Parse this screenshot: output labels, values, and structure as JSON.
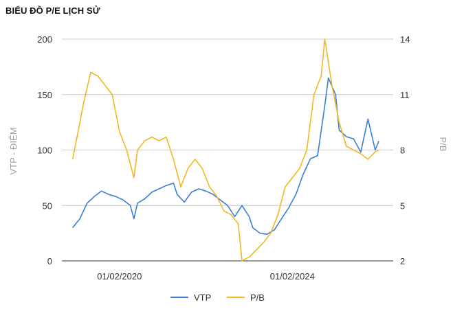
{
  "title": "BIỂU ĐỒ P/E LỊCH SỬ",
  "chart_data": {
    "type": "line",
    "title": "BIỂU ĐỒ P/E LỊCH SỬ",
    "ylabel_left": "VTP - ĐIỂM",
    "ylabel_right": "P/B",
    "ylim_left": [
      0,
      200
    ],
    "ylim_right": [
      2,
      14
    ],
    "yticks_left": [
      "0",
      "50",
      "100",
      "150",
      "200"
    ],
    "yticks_right": [
      "2",
      "5",
      "8",
      "11",
      "14"
    ],
    "xlim": [
      "2018-10",
      "2026-06"
    ],
    "xticks": [
      {
        "date": "2020-02",
        "label": "01/02/2020"
      },
      {
        "date": "2024-02",
        "label": "01/02/2024"
      }
    ],
    "grid": true,
    "legend_position": "bottom",
    "series": [
      {
        "name": "VTP",
        "axis": "left",
        "color": "#3b7dd8",
        "points": [
          [
            "2019-01",
            30
          ],
          [
            "2019-03",
            38
          ],
          [
            "2019-05",
            52
          ],
          [
            "2019-07",
            58
          ],
          [
            "2019-09",
            63
          ],
          [
            "2019-11",
            60
          ],
          [
            "2020-01",
            58
          ],
          [
            "2020-03",
            55
          ],
          [
            "2020-05",
            50
          ],
          [
            "2020-06",
            38
          ],
          [
            "2020-07",
            52
          ],
          [
            "2020-09",
            56
          ],
          [
            "2020-11",
            62
          ],
          [
            "2021-01",
            65
          ],
          [
            "2021-03",
            68
          ],
          [
            "2021-05",
            70
          ],
          [
            "2021-06",
            60
          ],
          [
            "2021-08",
            53
          ],
          [
            "2021-10",
            62
          ],
          [
            "2021-12",
            65
          ],
          [
            "2022-02",
            63
          ],
          [
            "2022-04",
            60
          ],
          [
            "2022-06",
            55
          ],
          [
            "2022-08",
            50
          ],
          [
            "2022-10",
            40
          ],
          [
            "2022-12",
            50
          ],
          [
            "2023-02",
            40
          ],
          [
            "2023-03",
            30
          ],
          [
            "2023-05",
            25
          ],
          [
            "2023-07",
            24
          ],
          [
            "2023-09",
            28
          ],
          [
            "2023-11",
            38
          ],
          [
            "2024-01",
            48
          ],
          [
            "2024-03",
            60
          ],
          [
            "2024-05",
            78
          ],
          [
            "2024-07",
            92
          ],
          [
            "2024-09",
            95
          ],
          [
            "2024-11",
            140
          ],
          [
            "2024-12",
            165
          ],
          [
            "2025-02",
            150
          ],
          [
            "2025-03",
            118
          ],
          [
            "2025-05",
            112
          ],
          [
            "2025-07",
            110
          ],
          [
            "2025-09",
            98
          ],
          [
            "2025-11",
            128
          ],
          [
            "2026-01",
            100
          ],
          [
            "2026-02",
            108
          ]
        ]
      },
      {
        "name": "P/B",
        "axis": "right",
        "color": "#f0b823",
        "points": [
          [
            "2019-01",
            7.5
          ],
          [
            "2019-02",
            8.5
          ],
          [
            "2019-04",
            10.5
          ],
          [
            "2019-06",
            12.2
          ],
          [
            "2019-08",
            12.0
          ],
          [
            "2019-10",
            11.5
          ],
          [
            "2019-12",
            11.0
          ],
          [
            "2020-02",
            9.0
          ],
          [
            "2020-04",
            8.0
          ],
          [
            "2020-06",
            6.5
          ],
          [
            "2020-07",
            8.0
          ],
          [
            "2020-09",
            8.5
          ],
          [
            "2020-11",
            8.7
          ],
          [
            "2021-01",
            8.5
          ],
          [
            "2021-03",
            8.7
          ],
          [
            "2021-05",
            7.5
          ],
          [
            "2021-07",
            6.0
          ],
          [
            "2021-09",
            7.0
          ],
          [
            "2021-11",
            7.5
          ],
          [
            "2022-01",
            7.0
          ],
          [
            "2022-03",
            6.0
          ],
          [
            "2022-05",
            5.5
          ],
          [
            "2022-07",
            4.7
          ],
          [
            "2022-09",
            4.5
          ],
          [
            "2022-11",
            4.0
          ],
          [
            "2022-12",
            2.0
          ],
          [
            "2023-02",
            2.2
          ],
          [
            "2023-04",
            2.6
          ],
          [
            "2023-06",
            3.0
          ],
          [
            "2023-08",
            3.5
          ],
          [
            "2023-10",
            4.5
          ],
          [
            "2023-12",
            6.0
          ],
          [
            "2024-02",
            6.5
          ],
          [
            "2024-04",
            7.0
          ],
          [
            "2024-06",
            8.0
          ],
          [
            "2024-08",
            11.0
          ],
          [
            "2024-10",
            12.0
          ],
          [
            "2024-11",
            14.0
          ],
          [
            "2025-01",
            11.5
          ],
          [
            "2025-03",
            9.5
          ],
          [
            "2025-05",
            8.2
          ],
          [
            "2025-07",
            8.0
          ],
          [
            "2025-09",
            7.8
          ],
          [
            "2025-11",
            7.5
          ],
          [
            "2026-01",
            7.9
          ],
          [
            "2026-02",
            8.0
          ]
        ]
      }
    ]
  }
}
